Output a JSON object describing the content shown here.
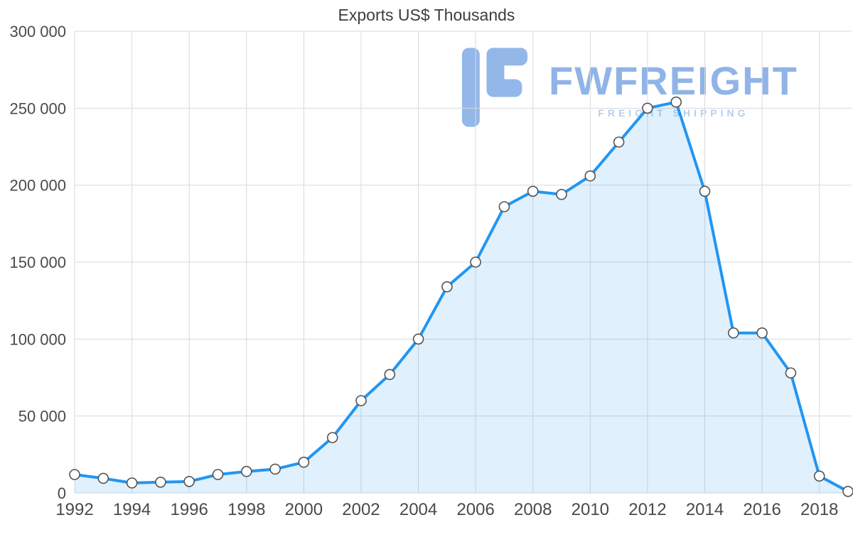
{
  "title": "Exports US$ Thousands",
  "watermark": {
    "brand": "FWFREIGHT",
    "tagline": "FREIGHT SHIPPING",
    "brand_color": "#7da8e4",
    "tagline_color": "#a9c7ee",
    "logo_color": "#82abe6"
  },
  "chart_data": {
    "type": "area",
    "title": "Exports US$ Thousands",
    "xlabel": "",
    "ylabel": "",
    "x": [
      1992,
      1993,
      1994,
      1995,
      1996,
      1997,
      1998,
      1999,
      2000,
      2001,
      2002,
      2003,
      2004,
      2005,
      2006,
      2007,
      2008,
      2009,
      2010,
      2011,
      2012,
      2013,
      2014,
      2015,
      2016,
      2017,
      2018,
      2019
    ],
    "series": [
      {
        "name": "Exports US$ Thousands",
        "values": [
          12000,
          9500,
          6500,
          7000,
          7500,
          12000,
          14000,
          15500,
          20000,
          36000,
          60000,
          77000,
          100000,
          134000,
          150000,
          186000,
          196000,
          194000,
          206000,
          228000,
          250000,
          254000,
          196000,
          104000,
          104000,
          78000,
          11000,
          1000
        ]
      }
    ],
    "xlim": [
      1992,
      2019
    ],
    "ylim": [
      0,
      300000
    ],
    "grid": true,
    "legend": "none",
    "y_ticks": [
      {
        "value": 0,
        "label": "0"
      },
      {
        "value": 50000,
        "label": "50 000"
      },
      {
        "value": 100000,
        "label": "100 000"
      },
      {
        "value": 150000,
        "label": "150 000"
      },
      {
        "value": 200000,
        "label": "200 000"
      },
      {
        "value": 250000,
        "label": "250 000"
      },
      {
        "value": 300000,
        "label": "300 000"
      }
    ],
    "x_ticks": [
      1992,
      1994,
      1996,
      1998,
      2000,
      2002,
      2004,
      2006,
      2008,
      2010,
      2012,
      2014,
      2016,
      2018
    ],
    "line_color": "#2196f3",
    "fill_color": "rgba(33,150,243,0.14)",
    "grid_color": "#dadada",
    "axis_text_color": "#4a4a4a",
    "marker_fill": "#ffffff",
    "marker_stroke": "#555555"
  }
}
